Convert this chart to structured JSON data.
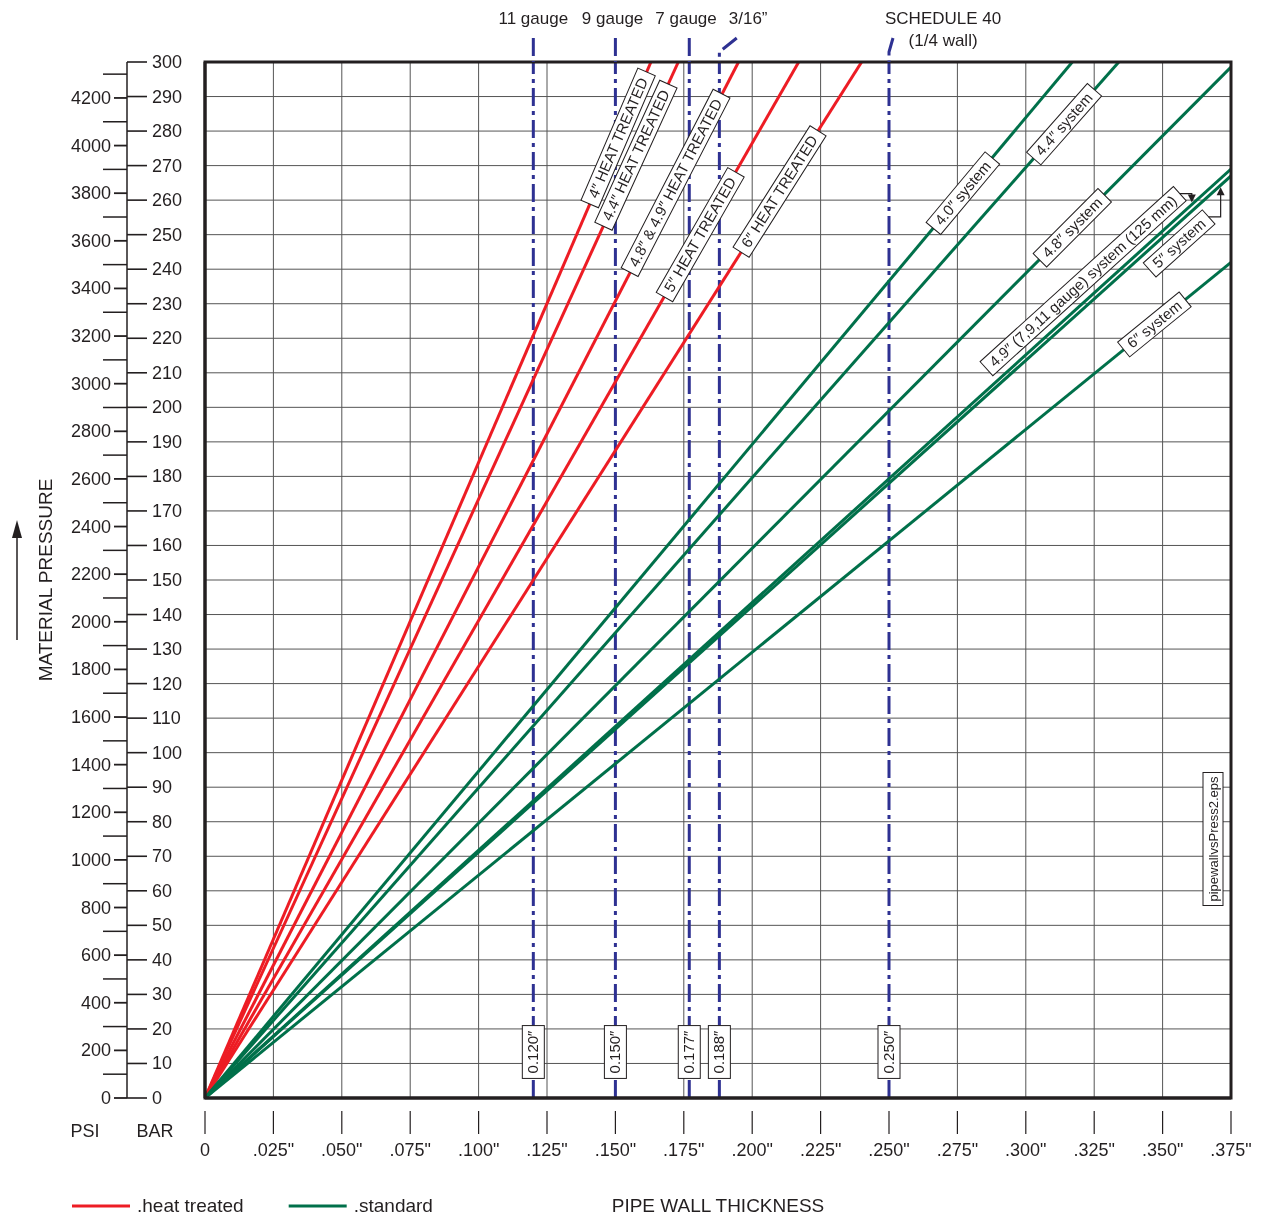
{
  "chart_data": {
    "type": "line",
    "xlabel": "PIPE WALL THICKNESS",
    "ylabel": "BAR",
    "y2label": "PSI",
    "xlim": [
      0,
      0.375
    ],
    "xticks": [
      0,
      {
        "value": 0.025,
        "label": ".025\""
      },
      {
        "value": 0.05,
        "label": ".050\""
      },
      {
        "value": 0.075,
        "label": ".075\""
      },
      {
        "value": 0.1,
        "label": ".100\""
      },
      {
        "value": 0.125,
        "label": ".125\""
      },
      {
        "value": 0.15,
        "label": ".150\""
      },
      {
        "value": 0.175,
        "label": ".175\""
      },
      {
        "value": 0.2,
        "label": ".200\""
      },
      {
        "value": 0.225,
        "label": ".225\""
      },
      {
        "value": 0.25,
        "label": ".250\""
      },
      {
        "value": 0.275,
        "label": ".275\""
      },
      {
        "value": 0.3,
        "label": ".300\""
      },
      {
        "value": 0.325,
        "label": ".325\""
      },
      {
        "value": 0.35,
        "label": ".350\""
      },
      {
        "value": 0.375,
        "label": ".375\""
      }
    ],
    "ylim": [
      0,
      300
    ],
    "yticks": [
      0,
      10,
      20,
      30,
      40,
      50,
      60,
      70,
      80,
      90,
      100,
      110,
      120,
      130,
      140,
      150,
      160,
      170,
      180,
      190,
      200,
      210,
      220,
      230,
      240,
      250,
      260,
      270,
      280,
      290,
      300
    ],
    "y2lim": [
      0,
      4351
    ],
    "y2ticks": [
      0,
      200,
      400,
      600,
      800,
      1000,
      1200,
      1400,
      1600,
      1800,
      2000,
      2200,
      2400,
      2600,
      2800,
      3000,
      3200,
      3400,
      3600,
      3800,
      4000,
      4200
    ],
    "grid": true,
    "legend": "bottom left",
    "line_style": "solid",
    "series": [
      {
        "name": ".heat treated",
        "color": "#ed1c24",
        "x": [
          0,
          0.163
        ],
        "values": [
          0,
          300
        ]
      },
      {
        "color": "#ed1c24",
        "x": [
          0,
          0.173
        ],
        "values": [
          0,
          300
        ]
      },
      {
        "color": "#ed1c24",
        "x": [
          0,
          0.195
        ],
        "values": [
          0,
          300
        ]
      },
      {
        "color": "#ed1c24",
        "x": [
          0,
          0.217
        ],
        "values": [
          0,
          300
        ]
      },
      {
        "color": "#ed1c24",
        "x": [
          0,
          0.24
        ],
        "values": [
          0,
          300
        ]
      },
      {
        "name": ".standard",
        "color": "#00704a",
        "x": [
          0,
          0.317
        ],
        "values": [
          0,
          300
        ]
      },
      {
        "color": "#00704a",
        "x": [
          0,
          0.334
        ],
        "values": [
          0,
          300
        ]
      },
      {
        "color": "#00704a",
        "x": [
          0,
          0.375
        ],
        "values": [
          0,
          298.5
        ]
      },
      {
        "color": "#00704a",
        "x": [
          0,
          0.375
        ],
        "values": [
          0,
          269
        ]
      },
      {
        "color": "#00704a",
        "x": [
          0,
          0.375
        ],
        "values": [
          0,
          267
        ]
      },
      {
        "color": "#00704a",
        "x": [
          0,
          0.375
        ],
        "values": [
          0,
          242
        ]
      }
    ],
    "ref_lines": [
      {
        "axis": "x",
        "value": 0.12,
        "label": "11 gauge",
        "color": "#2e3192",
        "line_style": "dashed"
      },
      {
        "axis": "x",
        "value": 0.15,
        "label": "9 gauge",
        "color": "#2e3192",
        "line_style": "dashed"
      },
      {
        "axis": "x",
        "value": 0.177,
        "label": "7 gauge",
        "color": "#2e3192",
        "line_style": "dashed"
      },
      {
        "axis": "x",
        "value": 0.188,
        "label": "3/16”",
        "color": "#2e3192",
        "line_style": "dashed"
      },
      {
        "axis": "x",
        "value": 0.25,
        "label": "SCHEDULE 40\n(1/4 wall)",
        "color": "#2e3192",
        "line_style": "dashed"
      }
    ],
    "annotations": [
      "0.120″",
      "0.150″",
      "0.177″",
      "0.188″",
      "0.250″",
      {
        "text": "4″ HEAT TREATED",
        "x": 0.151,
        "y": 278
      },
      {
        "text": "4.4″ HEAT TREATED",
        "x": 0.1575,
        "y": 273
      },
      {
        "text": "4.8″ & 4.9″ HEAT TREATED",
        "x": 0.172,
        "y": 265
      },
      {
        "text": "5″ HEAT TREATED",
        "x": 0.181,
        "y": 250
      },
      {
        "text": "6″ HEAT TREATED",
        "x": 0.21,
        "y": 262.5
      },
      {
        "text": "4.0″ system",
        "x": 0.277,
        "y": 262
      },
      {
        "text": "4.4″ system",
        "x": 0.314,
        "y": 282
      },
      {
        "text": "4.8″ system",
        "x": 0.317,
        "y": 252
      },
      {
        "text": "4.9″ (7,9,11 gauge) system (125 mm)",
        "x": 0.325,
        "y": 233
      },
      {
        "text": "5″ system",
        "x": 0.352,
        "y": 251
      },
      {
        "text": "6″ system",
        "x": 0.347,
        "y": 224
      },
      "MATERIAL PRESSURE",
      "pipewallvsPress2.eps"
    ]
  }
}
